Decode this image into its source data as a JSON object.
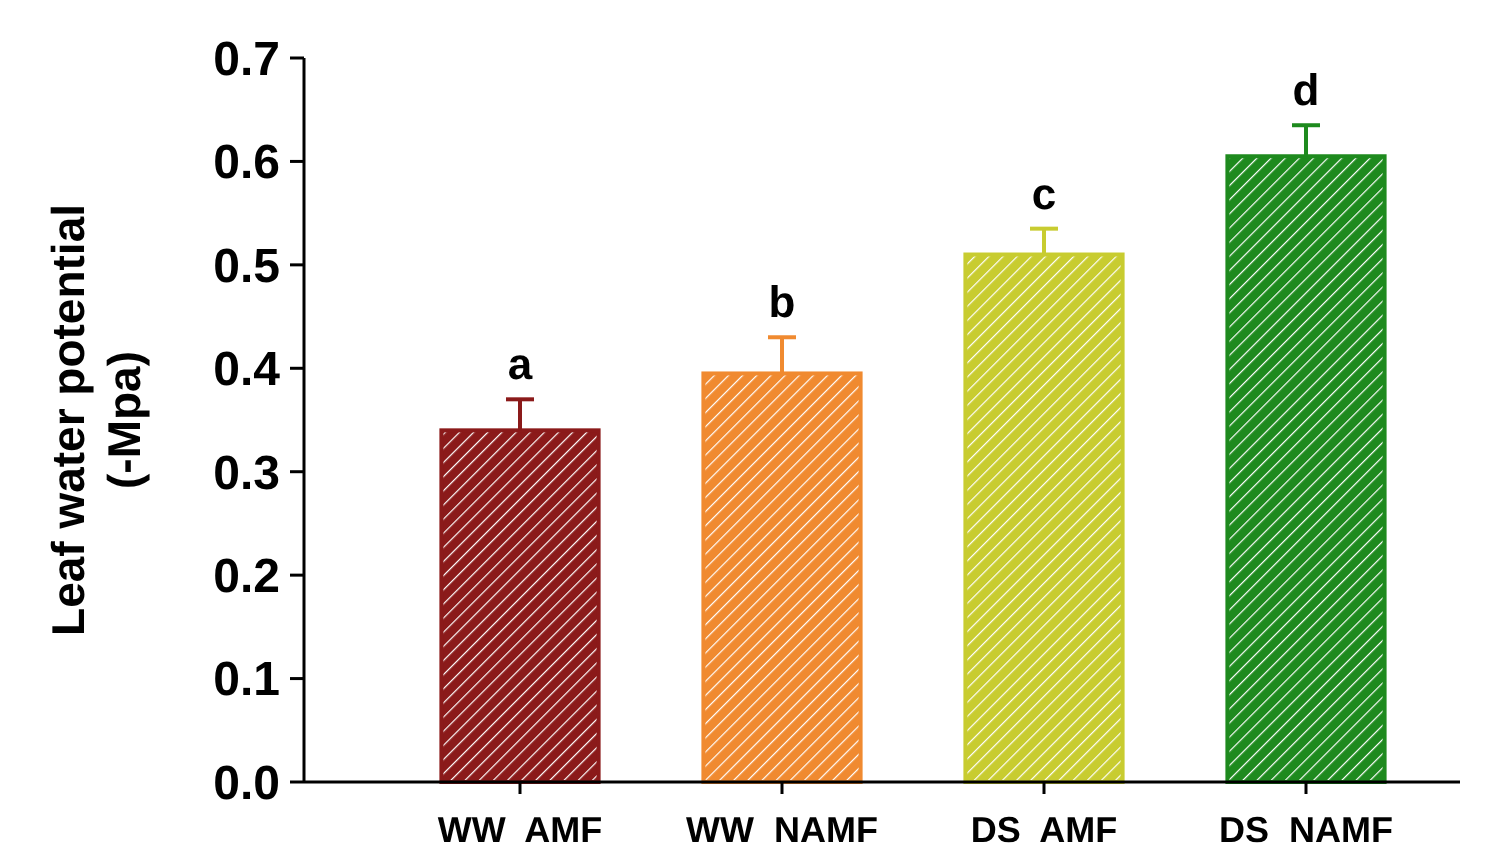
{
  "chart_data": {
    "type": "bar",
    "ylabel": "Leaf water potential\n(-Mpa)",
    "categories": [
      "WW  AMF",
      "WW  NAMF",
      "DS  AMF",
      "DS  NAMF"
    ],
    "values": [
      0.34,
      0.395,
      0.51,
      0.605
    ],
    "errors": [
      [
        0.34,
        0.37
      ],
      [
        0.395,
        0.43
      ],
      [
        0.51,
        0.535
      ],
      [
        0.605,
        0.635
      ]
    ],
    "colors": [
      "#8b1a1a",
      "#f08a30",
      "#c8cc30",
      "#1e8a1e"
    ],
    "ylim": [
      0,
      0.7
    ],
    "yticks": [
      {
        "value": 0,
        "label": "0.0"
      },
      0.1,
      0.2,
      0.3,
      0.4,
      0.5,
      0.6,
      0.7
    ],
    "annotations": [
      {
        "text": "a",
        "x": "WW  AMF",
        "y": 0.37
      },
      {
        "text": "b",
        "x": "WW  NAMF",
        "y": 0.43
      },
      {
        "text": "c",
        "x": "DS  AMF",
        "y": 0.535
      },
      {
        "text": "d",
        "x": "DS  NAMF",
        "y": 0.635
      }
    ],
    "grid": false
  }
}
